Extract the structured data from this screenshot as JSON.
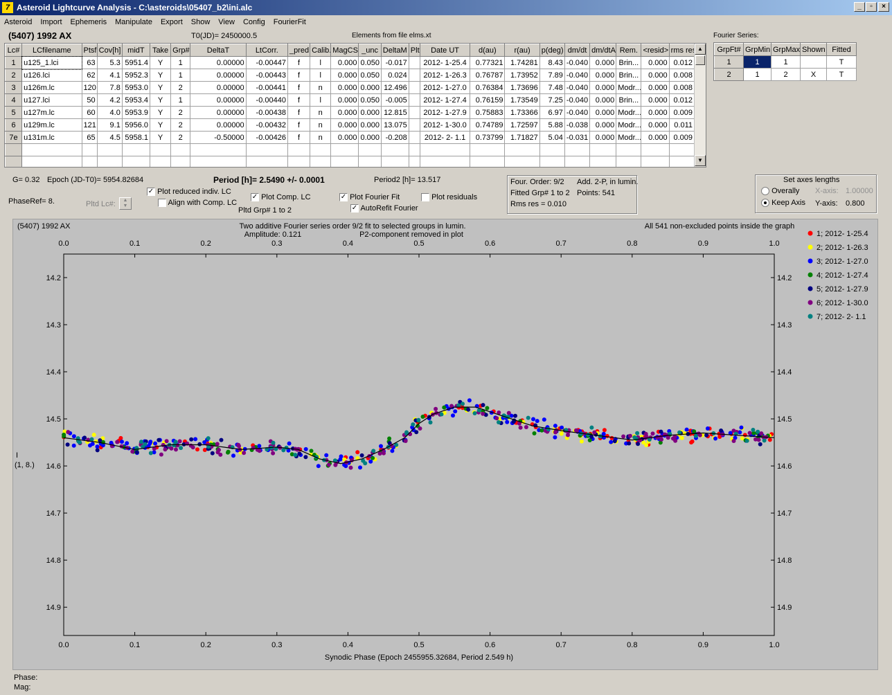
{
  "window": {
    "title": "Asteroid Lightcurve Analysis - C:\\asteroids\\05407_b2\\ini.alc",
    "app_icon": "7",
    "min": "_",
    "max": "▫",
    "close": "×"
  },
  "menu": [
    "Asteroid",
    "Import",
    "Ephemeris",
    "Manipulate",
    "Export",
    "Show",
    "View",
    "Config",
    "FourierFit"
  ],
  "header": {
    "asteroid": "(5407) 1992 AX",
    "t0": "T0(JD)= 2450000.5",
    "elements": "Elements from file elms.xt",
    "fourier_series": "Fourier Series:"
  },
  "lc_table": {
    "columns": [
      "Lc#",
      "LCfilename",
      "Ptsf",
      "Cov[h]",
      "midT",
      "Take",
      "Grp#",
      "DeltaT",
      "LtCorr.",
      "_pred.",
      "Calib.",
      "MagCS",
      "_unc",
      "DeltaM",
      "Plt",
      "Date UT",
      "d(au)",
      "r(au)",
      "p(deg)",
      "dm/dt",
      "dm/dtA",
      "Rem.",
      "<resid>",
      "rms res"
    ],
    "rows": [
      [
        "1",
        "u125_1.lci",
        "63",
        "5.3",
        "5951.4",
        "Y",
        "1",
        "0.00000",
        "-0.00447",
        "f",
        "l",
        "0.000",
        "0.050",
        "-0.017",
        "",
        "2012- 1-25.4",
        "0.77321",
        "1.74281",
        "8.43",
        "-0.040",
        "0.000",
        "Brin...",
        "0.000",
        "0.012"
      ],
      [
        "2",
        "u126.lci",
        "62",
        "4.1",
        "5952.3",
        "Y",
        "1",
        "0.00000",
        "-0.00443",
        "f",
        "l",
        "0.000",
        "0.050",
        "0.024",
        "",
        "2012- 1-26.3",
        "0.76787",
        "1.73952",
        "7.89",
        "-0.040",
        "0.000",
        "Brin...",
        "0.000",
        "0.008"
      ],
      [
        "3",
        "u126m.lc",
        "120",
        "7.8",
        "5953.0",
        "Y",
        "2",
        "0.00000",
        "-0.00441",
        "f",
        "n",
        "0.000",
        "0.000",
        "12.496",
        "",
        "2012- 1-27.0",
        "0.76384",
        "1.73696",
        "7.48",
        "-0.040",
        "0.000",
        "Modr...",
        "0.000",
        "0.008"
      ],
      [
        "4",
        "u127.lci",
        "50",
        "4.2",
        "5953.4",
        "Y",
        "1",
        "0.00000",
        "-0.00440",
        "f",
        "l",
        "0.000",
        "0.050",
        "-0.005",
        "",
        "2012- 1-27.4",
        "0.76159",
        "1.73549",
        "7.25",
        "-0.040",
        "0.000",
        "Brin...",
        "0.000",
        "0.012"
      ],
      [
        "5",
        "u127m.lc",
        "60",
        "4.0",
        "5953.9",
        "Y",
        "2",
        "0.00000",
        "-0.00438",
        "f",
        "n",
        "0.000",
        "0.000",
        "12.815",
        "",
        "2012- 1-27.9",
        "0.75883",
        "1.73366",
        "6.97",
        "-0.040",
        "0.000",
        "Modr...",
        "0.000",
        "0.009"
      ],
      [
        "6",
        "u129m.lc",
        "121",
        "9.1",
        "5956.0",
        "Y",
        "2",
        "0.00000",
        "-0.00432",
        "f",
        "n",
        "0.000",
        "0.000",
        "13.075",
        "",
        "2012- 1-30.0",
        "0.74789",
        "1.72597",
        "5.88",
        "-0.038",
        "0.000",
        "Modr...",
        "0.000",
        "0.011"
      ],
      [
        "7e",
        "u131m.lc",
        "65",
        "4.5",
        "5958.1",
        "Y",
        "2",
        "-0.50000",
        "-0.00426",
        "f",
        "n",
        "0.000",
        "0.000",
        "-0.208",
        "",
        "2012- 2- 1.1",
        "0.73799",
        "1.71827",
        "5.04",
        "-0.031",
        "0.000",
        "Modr...",
        "0.000",
        "0.009"
      ]
    ]
  },
  "fourier_table": {
    "columns": [
      "GrpFt#",
      "GrpMin",
      "GrpMax",
      "Shown",
      "Fitted"
    ],
    "rows": [
      [
        "1",
        "1",
        "1",
        "",
        "T"
      ],
      [
        "2",
        "1",
        "2",
        "X",
        "T"
      ]
    ]
  },
  "params": {
    "g": "G= 0.32",
    "epoch": "Epoch (JD-T0)= 5954.82684",
    "period": "Period [h]= 2.5490 +/- 0.0001",
    "period2": "Period2 [h]= 13.517",
    "phase_ref": "PhaseRef= 8.",
    "pltd_lc": "Pltd Lc#:",
    "pltd_grp": "Pltd Grp#  1   to   2"
  },
  "checks": {
    "plot_reduced": {
      "label": "Plot reduced indiv. LC",
      "checked": "✓"
    },
    "align_comp": {
      "label": "Align with Comp. LC",
      "checked": ""
    },
    "plot_comp": {
      "label": "Plot Comp. LC",
      "checked": "✓"
    },
    "plot_fourier": {
      "label": "Plot Fourier Fit",
      "checked": "✓"
    },
    "autorefit": {
      "label": "AutoRefit Fourier",
      "checked": "✓"
    },
    "plot_residuals": {
      "label": "Plot residuals",
      "checked": ""
    }
  },
  "fourier_info": {
    "order": "Four. Order:  9/2",
    "add": "Add. 2-P, in lumin.",
    "fitted": "Fitted Grp# 1 to 2",
    "points": "Points: 541",
    "rms": "Rms res     = 0.010"
  },
  "axes_box": {
    "title": "Set axes lengths",
    "overally": "Overally",
    "keep": "Keep Axis",
    "xaxis_label": "X-axis:",
    "xaxis_val": "1.00000",
    "yaxis_label": "Y-axis:",
    "yaxis_val": "0.800"
  },
  "plot": {
    "name": "(5407) 1992 AX",
    "subtitle1": "Two additive Fourier series order 9/2 fit to selected groups in lumin.",
    "amplitude": "Amplitude: 0.121",
    "p2": "P2-component removed in plot",
    "inside": "All 541 non-excluded points inside the graph",
    "ylabel1": "I",
    "ylabel2": "(1, 8.)",
    "xlabel": "Synodic Phase (Epoch 2455955.32684, Period 2.549 h)"
  },
  "footer": {
    "phase": "Phase:",
    "mag": "Mag:"
  },
  "chart_data": {
    "type": "scatter",
    "xlim": [
      0.0,
      1.0
    ],
    "ylim": [
      14.15,
      14.96
    ],
    "y_inverted": true,
    "x_ticks": [
      "0.0",
      "0.1",
      "0.2",
      "0.3",
      "0.4",
      "0.5",
      "0.6",
      "0.7",
      "0.8",
      "0.9",
      "1.0"
    ],
    "y_ticks": [
      "14.2",
      "14.3",
      "14.4",
      "14.5",
      "14.6",
      "14.7",
      "14.8",
      "14.9"
    ],
    "legend": [
      {
        "label": "1; 2012- 1-25.4",
        "color": "#ff0000"
      },
      {
        "label": "2; 2012- 1-26.3",
        "color": "#ffff00"
      },
      {
        "label": "3; 2012- 1-27.0",
        "color": "#0000ff"
      },
      {
        "label": "4; 2012- 1-27.4",
        "color": "#008000"
      },
      {
        "label": "5; 2012- 1-27.9",
        "color": "#000080"
      },
      {
        "label": "6; 2012- 1-30.0",
        "color": "#800080"
      },
      {
        "label": "7; 2012- 2- 1.1",
        "color": "#008080"
      }
    ],
    "fit_curve": {
      "x": [
        0.0,
        0.05,
        0.1,
        0.15,
        0.2,
        0.25,
        0.3,
        0.33,
        0.36,
        0.39,
        0.42,
        0.45,
        0.48,
        0.5,
        0.52,
        0.55,
        0.58,
        0.6,
        0.63,
        0.66,
        0.7,
        0.75,
        0.8,
        0.85,
        0.9,
        0.95,
        1.0
      ],
      "y": [
        14.54,
        14.55,
        14.565,
        14.555,
        14.555,
        14.565,
        14.56,
        14.565,
        14.585,
        14.595,
        14.585,
        14.565,
        14.54,
        14.51,
        14.49,
        14.475,
        14.475,
        14.485,
        14.5,
        14.515,
        14.525,
        14.535,
        14.545,
        14.535,
        14.53,
        14.535,
        14.54
      ]
    }
  }
}
